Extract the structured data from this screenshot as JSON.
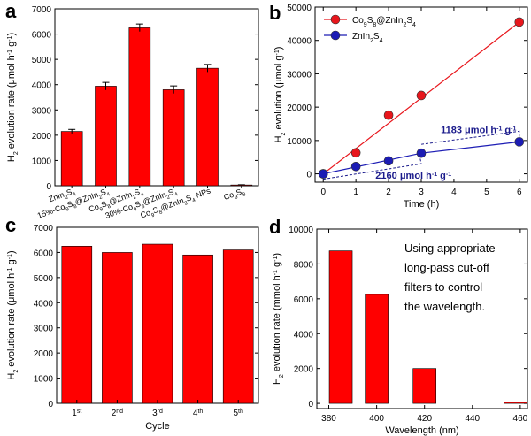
{
  "panel_letters": {
    "a": "a",
    "b": "b",
    "c": "c",
    "d": "d"
  },
  "chart_data": [
    {
      "panel": "a",
      "type": "bar",
      "categories": [
        {
          "parts": [
            {
              "t": "ZnIn"
            },
            {
              "t": "2",
              "s": "sub"
            },
            {
              "t": "S"
            },
            {
              "t": "4",
              "s": "sub"
            }
          ]
        },
        {
          "parts": [
            {
              "t": "15%-Co"
            },
            {
              "t": "9",
              "s": "sub"
            },
            {
              "t": "S"
            },
            {
              "t": "8",
              "s": "sub"
            },
            {
              "t": "@ZnIn"
            },
            {
              "t": "2",
              "s": "sub"
            },
            {
              "t": "S"
            },
            {
              "t": "4",
              "s": "sub"
            }
          ]
        },
        {
          "parts": [
            {
              "t": "Co"
            },
            {
              "t": "9",
              "s": "sub"
            },
            {
              "t": "S"
            },
            {
              "t": "8",
              "s": "sub"
            },
            {
              "t": "@ZnIn"
            },
            {
              "t": "2",
              "s": "sub"
            },
            {
              "t": "S"
            },
            {
              "t": "4",
              "s": "sub"
            }
          ]
        },
        {
          "parts": [
            {
              "t": "30%-Co"
            },
            {
              "t": "9",
              "s": "sub"
            },
            {
              "t": "S"
            },
            {
              "t": "8",
              "s": "sub"
            },
            {
              "t": "@ZnIn"
            },
            {
              "t": "2",
              "s": "sub"
            },
            {
              "t": "S"
            },
            {
              "t": "4",
              "s": "sub"
            }
          ]
        },
        {
          "parts": [
            {
              "t": "Co"
            },
            {
              "t": "9",
              "s": "sub"
            },
            {
              "t": "S"
            },
            {
              "t": "8",
              "s": "sub"
            },
            {
              "t": "@ZnIn"
            },
            {
              "t": "2",
              "s": "sub"
            },
            {
              "t": "S"
            },
            {
              "t": "4",
              "s": "sub"
            },
            {
              "t": " NPs"
            }
          ]
        },
        {
          "parts": [
            {
              "t": "Co"
            },
            {
              "t": "9",
              "s": "sub"
            },
            {
              "t": "S"
            },
            {
              "t": "8",
              "s": "sub"
            }
          ]
        }
      ],
      "values": [
        2150,
        3940,
        6250,
        3800,
        4650,
        30
      ],
      "errors": [
        80,
        150,
        150,
        150,
        150,
        10
      ],
      "ylabel": {
        "parts": [
          {
            "t": "H"
          },
          {
            "t": "2",
            "s": "sub"
          },
          {
            "t": " evolution rate (μmol h"
          },
          {
            "t": "-1",
            "s": "sup"
          },
          {
            "t": " g"
          },
          {
            "t": "-1",
            "s": "sup"
          },
          {
            "t": ")"
          }
        ]
      },
      "ylim": [
        0,
        7000
      ],
      "yticks": [
        0,
        1000,
        2000,
        3000,
        4000,
        5000,
        6000,
        7000
      ],
      "bar_color": "#ff0000"
    },
    {
      "panel": "b",
      "type": "scatter",
      "xlabel": {
        "parts": [
          {
            "t": "Time (h)"
          }
        ]
      },
      "ylabel": {
        "parts": [
          {
            "t": "H"
          },
          {
            "t": "2",
            "s": "sub"
          },
          {
            "t": " evolution (μmol g"
          },
          {
            "t": "-1",
            "s": "sup"
          },
          {
            "t": ")"
          }
        ]
      },
      "xlim": [
        0,
        6
      ],
      "ylim": [
        -2500,
        50000
      ],
      "xticks": [
        0,
        1,
        2,
        3,
        4,
        5,
        6
      ],
      "yticks": [
        0,
        10000,
        20000,
        30000,
        40000,
        50000
      ],
      "series": [
        {
          "name": {
            "parts": [
              {
                "t": "Co"
              },
              {
                "t": "9",
                "s": "sub"
              },
              {
                "t": "S"
              },
              {
                "t": "8",
                "s": "sub"
              },
              {
                "t": "@ZnIn"
              },
              {
                "t": "2",
                "s": "sub"
              },
              {
                "t": "S"
              },
              {
                "t": "4",
                "s": "sub"
              }
            ]
          },
          "x": [
            0,
            1,
            2,
            3,
            6
          ],
          "y": [
            0,
            6300,
            17600,
            23500,
            45500
          ],
          "fit": [
            [
              0,
              0
            ],
            [
              6,
              45500
            ]
          ],
          "color": "#e8161c"
        },
        {
          "name": {
            "parts": [
              {
                "t": "ZnIn"
              },
              {
                "t": "2",
                "s": "sub"
              },
              {
                "t": "S"
              },
              {
                "t": "4",
                "s": "sub"
              }
            ]
          },
          "x": [
            0,
            1,
            2,
            3,
            6
          ],
          "y": [
            0,
            2200,
            3900,
            6200,
            9600
          ],
          "fit": [
            [
              0,
              0
            ],
            [
              3,
              6200
            ],
            [
              6,
              9600
            ]
          ],
          "color": "#1c1cb4"
        }
      ],
      "legend": "top-left",
      "annotations": [
        {
          "parts": [
            {
              "t": "2160 μmol h"
            },
            {
              "t": "-1",
              "s": "sup"
            },
            {
              "t": " g"
            },
            {
              "t": "-1",
              "s": "sup"
            }
          ]
        },
        {
          "parts": [
            {
              "t": "1183 μmol h"
            },
            {
              "t": "-1",
              "s": "sup"
            },
            {
              "t": " g"
            },
            {
              "t": "-1",
              "s": "sup"
            }
          ]
        }
      ],
      "annotation_color": "#1c1c8c"
    },
    {
      "panel": "c",
      "type": "bar",
      "categories": [
        {
          "parts": [
            {
              "t": "1"
            },
            {
              "t": "st",
              "s": "sup"
            }
          ]
        },
        {
          "parts": [
            {
              "t": "2"
            },
            {
              "t": "nd",
              "s": "sup"
            }
          ]
        },
        {
          "parts": [
            {
              "t": "3"
            },
            {
              "t": "rd",
              "s": "sup"
            }
          ]
        },
        {
          "parts": [
            {
              "t": "4"
            },
            {
              "t": "th",
              "s": "sup"
            }
          ]
        },
        {
          "parts": [
            {
              "t": "5"
            },
            {
              "t": "th",
              "s": "sup"
            }
          ]
        }
      ],
      "values": [
        6250,
        6000,
        6330,
        5900,
        6100
      ],
      "xlabel": {
        "parts": [
          {
            "t": "Cycle"
          }
        ]
      },
      "ylabel": {
        "parts": [
          {
            "t": "H"
          },
          {
            "t": "2",
            "s": "sub"
          },
          {
            "t": " evolution rate (μmol h"
          },
          {
            "t": "-1",
            "s": "sup"
          },
          {
            "t": " g"
          },
          {
            "t": "-1",
            "s": "sup"
          },
          {
            "t": ")"
          }
        ]
      },
      "ylim": [
        0,
        7000
      ],
      "yticks": [
        0,
        1000,
        2000,
        3000,
        4000,
        5000,
        6000,
        7000
      ],
      "bar_color": "#ff0000"
    },
    {
      "panel": "d",
      "type": "bar",
      "x": [
        380,
        400,
        420,
        440,
        460
      ],
      "values": [
        8750,
        6250,
        2000,
        null,
        70
      ],
      "bar_x": [
        385,
        400,
        420,
        458
      ],
      "bar_values": [
        8750,
        6250,
        2000,
        70
      ],
      "xlabel": {
        "parts": [
          {
            "t": "Wavelength (nm)"
          }
        ]
      },
      "ylabel": {
        "parts": [
          {
            "t": "H"
          },
          {
            "t": "2",
            "s": "sub"
          },
          {
            "t": " evolution rate (mmol h"
          },
          {
            "t": "-1",
            "s": "sup"
          },
          {
            "t": " g"
          },
          {
            "t": "-1",
            "s": "sup"
          },
          {
            "t": ")"
          }
        ]
      },
      "xlim": [
        375,
        463
      ],
      "ylim": [
        -300,
        10000
      ],
      "xticks": [
        380,
        400,
        420,
        440,
        460
      ],
      "yticks": [
        0,
        2000,
        4000,
        6000,
        8000,
        10000
      ],
      "annotation_lines": [
        "Using appropriate",
        "long-pass cut-off",
        "filters to control",
        "the wavelength."
      ],
      "bar_color": "#ff0000"
    }
  ]
}
